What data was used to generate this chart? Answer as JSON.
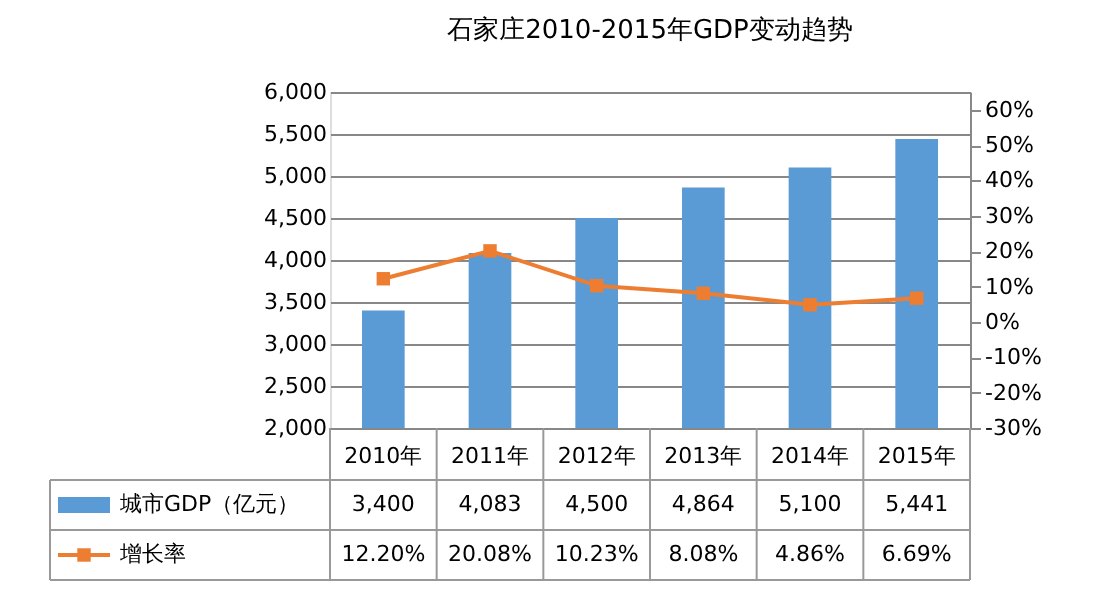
{
  "chart_data": {
    "type": "bar",
    "title": "石家庄2010-2015年GDP变动趋势",
    "categories": [
      "2010年",
      "2011年",
      "2012年",
      "2013年",
      "2014年",
      "2015年"
    ],
    "series": [
      {
        "name": "城市GDP（亿元）",
        "color": "#5b9bd5",
        "values": [
          3400,
          4083,
          4500,
          4864,
          5100,
          5441
        ],
        "value_labels": [
          "3,400",
          "4,083",
          "4,500",
          "4,864",
          "5,100",
          "5,441"
        ]
      },
      {
        "name": "增长率",
        "type": "line",
        "axis": "y2",
        "color": "#ed7d31",
        "values": [
          12.2,
          20.08,
          10.23,
          8.08,
          4.86,
          6.69
        ],
        "value_labels": [
          "12.20%",
          "20.08%",
          "10.23%",
          "8.08%",
          "4.86%",
          "6.69%"
        ]
      }
    ],
    "ylim": [
      2000,
      6000
    ],
    "yticks": [
      {
        "value": 2000,
        "label": "2,000"
      },
      {
        "value": 2500,
        "label": "2,500"
      },
      {
        "value": 3000,
        "label": "3,000"
      },
      {
        "value": 3500,
        "label": "3,500"
      },
      {
        "value": 4000,
        "label": "4,000"
      },
      {
        "value": 4500,
        "label": "4,500"
      },
      {
        "value": 5000,
        "label": "5,000"
      },
      {
        "value": 5500,
        "label": "5,500"
      },
      {
        "value": 6000,
        "label": "6,000"
      }
    ],
    "y2lim": [
      -30,
      65
    ],
    "y2ticks": [
      {
        "value": -30,
        "label": "-30%"
      },
      {
        "value": -20,
        "label": "-20%"
      },
      {
        "value": -10,
        "label": "-10%"
      },
      {
        "value": 0,
        "label": "0%"
      },
      {
        "value": 10,
        "label": "10%"
      },
      {
        "value": 20,
        "label": "20%"
      },
      {
        "value": 30,
        "label": "30%"
      },
      {
        "value": 40,
        "label": "40%"
      },
      {
        "value": 50,
        "label": "50%"
      },
      {
        "value": 60,
        "label": "60%"
      }
    ],
    "grid": "y",
    "legend": "bottom",
    "marker": "square",
    "line_style": "solid"
  }
}
